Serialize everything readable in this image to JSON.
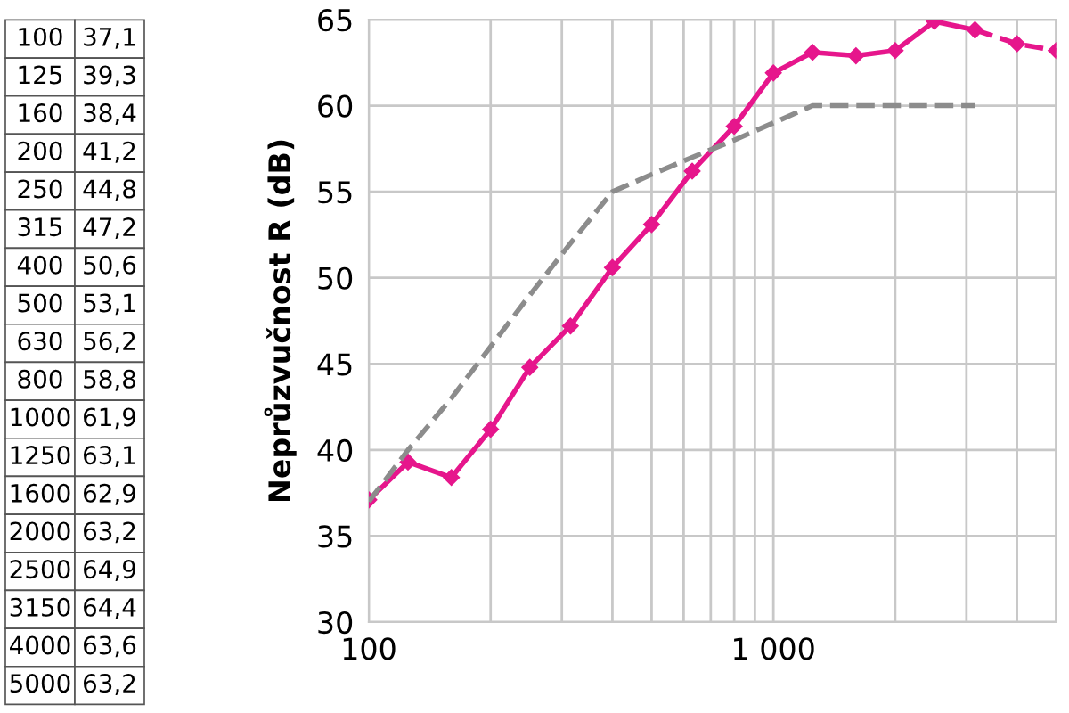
{
  "chart_data": [
    {
      "type": "other",
      "annotations": [
        "100",
        "37,1",
        "125",
        "39,3",
        "160",
        "38,4",
        "200",
        "41,2",
        "250",
        "44,8",
        "315",
        "47,2",
        "400",
        "50,6",
        "500",
        "53,1",
        "630",
        "56,2",
        "800",
        "58,8",
        "1000",
        "61,9",
        "1250",
        "63,1",
        "1600",
        "62,9",
        "2000",
        "63,2",
        "2500",
        "64,9",
        "3150",
        "64,4",
        "4000",
        "63,6",
        "5000",
        "63,2"
      ]
    },
    {
      "type": "line",
      "ylabel": "Neprůzvučnost R (dB)",
      "log": "x",
      "xlim": [
        100,
        5000
      ],
      "xticks": [
        100,
        {
          "value": 200,
          "label": null
        },
        {
          "value": 300,
          "label": null
        },
        {
          "value": 400,
          "label": null
        },
        {
          "value": 500,
          "label": null
        },
        {
          "value": 600,
          "label": null
        },
        {
          "value": 700,
          "label": null
        },
        {
          "value": 800,
          "label": null
        },
        {
          "value": 900,
          "label": null
        },
        {
          "value": 1000,
          "label": "1 000"
        },
        {
          "value": 2000,
          "label": null
        },
        {
          "value": 3000,
          "label": null
        },
        {
          "value": 4000,
          "label": null
        },
        {
          "value": 5000,
          "label": null
        }
      ],
      "ylim": [
        30,
        65
      ],
      "yticks": [
        30,
        35,
        40,
        45,
        50,
        55,
        60,
        65
      ],
      "grid": true,
      "series": [
        {
          "color": "#e6168c",
          "marker": "diamond",
          "line_style": "solid",
          "x": [
            100,
            125,
            160,
            200,
            250,
            315,
            400,
            500,
            630,
            800,
            1000,
            1250,
            1600,
            2000,
            2500,
            3150
          ],
          "values": [
            37.1,
            39.3,
            38.4,
            41.2,
            44.8,
            47.2,
            50.6,
            53.1,
            56.2,
            58.8,
            61.9,
            63.1,
            62.9,
            63.2,
            64.9,
            64.4
          ]
        },
        {
          "color": "#e6168c",
          "marker": "diamond",
          "line_style": "dashed",
          "x": [
            3150,
            4000,
            5000
          ],
          "values": [
            64.4,
            63.6,
            63.2
          ]
        },
        {
          "color": "#8c8c8c",
          "marker": "none",
          "line_style": "dashed",
          "x": [
            100,
            125,
            160,
            200,
            250,
            315,
            400,
            500,
            630,
            800,
            1000,
            1250,
            1600,
            2000,
            2500,
            3150
          ],
          "values": [
            37,
            40,
            43,
            46,
            49,
            52,
            55,
            56,
            57,
            58,
            59,
            60,
            60,
            60,
            60,
            60
          ]
        }
      ]
    }
  ]
}
